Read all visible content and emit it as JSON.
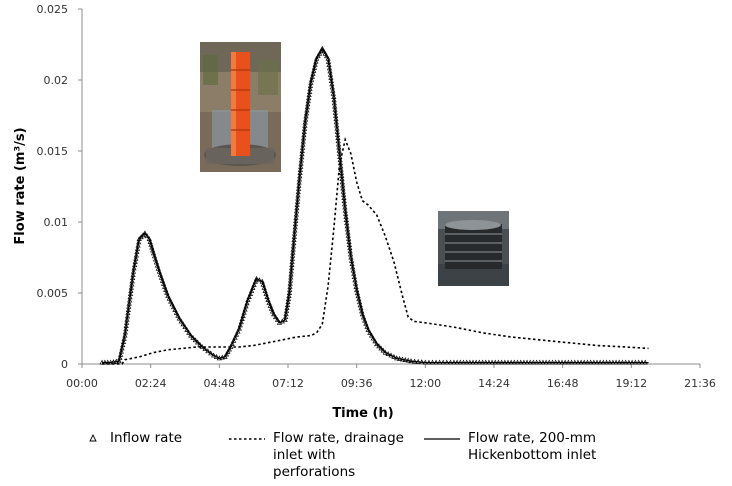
{
  "chart_data": {
    "type": "line",
    "xlabel": "Time (h)",
    "ylabel": "Flow rate (m³/s)",
    "x_ticks": [
      "00:00",
      "02:24",
      "04:48",
      "07:12",
      "09:36",
      "12:00",
      "14:24",
      "16:48",
      "19:12",
      "21:36"
    ],
    "xlim": [
      0,
      21.6
    ],
    "y_ticks": [
      "0",
      "0.005",
      "0.01",
      "0.015",
      "0.02",
      "0.025"
    ],
    "ylim": [
      0,
      0.025
    ],
    "grid": false,
    "legend_position": "bottom",
    "series": [
      {
        "name": "Inflow rate",
        "style": "triangle-markers",
        "color": "#000000",
        "x": [
          0.7,
          1.0,
          1.3,
          1.5,
          1.8,
          2.0,
          2.2,
          2.35,
          2.5,
          2.7,
          3.0,
          3.4,
          3.8,
          4.2,
          4.6,
          4.8,
          5.0,
          5.2,
          5.5,
          5.8,
          6.1,
          6.3,
          6.5,
          6.7,
          6.9,
          7.1,
          7.25,
          7.4,
          7.6,
          7.8,
          8.0,
          8.2,
          8.4,
          8.6,
          8.8,
          9.0,
          9.2,
          9.4,
          9.6,
          9.8,
          10.0,
          10.3,
          10.6,
          11.0,
          11.5,
          12.0,
          12.5,
          13.0,
          14.0,
          15.0,
          16.0,
          17.0,
          18.0,
          19.0,
          19.8
        ],
        "y": [
          0.0001,
          0.0001,
          0.0002,
          0.002,
          0.0065,
          0.0088,
          0.0092,
          0.0088,
          0.0078,
          0.0065,
          0.0048,
          0.0032,
          0.002,
          0.0012,
          0.0006,
          0.0004,
          0.0005,
          0.0012,
          0.0025,
          0.0045,
          0.006,
          0.0058,
          0.0045,
          0.0035,
          0.0029,
          0.0031,
          0.005,
          0.0085,
          0.013,
          0.017,
          0.0198,
          0.0215,
          0.0222,
          0.0215,
          0.0188,
          0.0148,
          0.0108,
          0.0075,
          0.0052,
          0.0035,
          0.0024,
          0.0014,
          0.0008,
          0.0004,
          0.0002,
          0.0001,
          0.0001,
          0.0001,
          0.0001,
          0.0001,
          0.0001,
          0.0001,
          0.0001,
          0.0001,
          0.0001
        ]
      },
      {
        "name": "Flow rate, drainage inlet with perforations",
        "style": "dashed",
        "color": "#000000",
        "x": [
          0.7,
          1.4,
          1.5,
          2.0,
          2.5,
          3.0,
          3.5,
          4.0,
          4.5,
          5.0,
          5.5,
          6.0,
          6.5,
          7.0,
          7.5,
          8.0,
          8.2,
          8.4,
          8.6,
          8.8,
          9.0,
          9.2,
          9.4,
          9.6,
          9.8,
          10.0,
          10.3,
          10.6,
          10.9,
          11.2,
          11.4,
          11.6,
          12.0,
          13.0,
          14.0,
          15.0,
          16.0,
          17.0,
          18.0,
          19.0,
          19.8
        ],
        "y": [
          0.0,
          0.0,
          0.0003,
          0.0005,
          0.0008,
          0.001,
          0.0011,
          0.0012,
          0.0012,
          0.0012,
          0.0012,
          0.0013,
          0.0015,
          0.0017,
          0.0019,
          0.002,
          0.0022,
          0.0028,
          0.0055,
          0.0095,
          0.014,
          0.0158,
          0.0148,
          0.0128,
          0.0115,
          0.0112,
          0.0105,
          0.009,
          0.0072,
          0.0048,
          0.0033,
          0.003,
          0.0029,
          0.0026,
          0.0022,
          0.0019,
          0.0017,
          0.0015,
          0.0013,
          0.0012,
          0.0011
        ]
      },
      {
        "name": "Flow rate, 200-mm Hickenbottom inlet",
        "style": "solid",
        "color": "#000000",
        "x": [
          0.7,
          1.0,
          1.3,
          1.5,
          1.8,
          2.0,
          2.2,
          2.35,
          2.5,
          2.7,
          3.0,
          3.4,
          3.8,
          4.2,
          4.6,
          4.8,
          5.0,
          5.2,
          5.5,
          5.8,
          6.1,
          6.3,
          6.5,
          6.7,
          6.9,
          7.1,
          7.25,
          7.4,
          7.6,
          7.8,
          8.0,
          8.2,
          8.4,
          8.6,
          8.8,
          9.0,
          9.2,
          9.4,
          9.6,
          9.8,
          10.0,
          10.3,
          10.6,
          11.0,
          11.5,
          12.0,
          12.5,
          13.0,
          14.0,
          15.0,
          16.0,
          17.0,
          18.0,
          19.0,
          19.8
        ],
        "y": [
          0.0001,
          0.0001,
          0.0002,
          0.002,
          0.0065,
          0.0088,
          0.0092,
          0.0088,
          0.0078,
          0.0065,
          0.0048,
          0.0032,
          0.002,
          0.0012,
          0.0006,
          0.0004,
          0.0005,
          0.0012,
          0.0025,
          0.0045,
          0.006,
          0.0058,
          0.0045,
          0.0035,
          0.0029,
          0.0031,
          0.005,
          0.0085,
          0.013,
          0.017,
          0.0198,
          0.0215,
          0.0222,
          0.0215,
          0.0188,
          0.0148,
          0.0108,
          0.0075,
          0.0052,
          0.0035,
          0.0024,
          0.0014,
          0.0008,
          0.0004,
          0.0002,
          0.0001,
          0.0001,
          0.0001,
          0.0001,
          0.0001,
          0.0001,
          0.0001,
          0.0001,
          0.0001,
          0.0001
        ]
      }
    ],
    "insets": [
      {
        "name": "perforated-drainage-inlet-photo"
      },
      {
        "name": "hickenbottom-inlet-photo"
      }
    ]
  },
  "legend": [
    {
      "lines": [
        "Inflow rate"
      ]
    },
    {
      "lines": [
        "Flow rate, drainage",
        "inlet with",
        "perforations"
      ]
    },
    {
      "lines": [
        "Flow rate, 200-mm",
        "Hickenbottom inlet"
      ]
    }
  ]
}
